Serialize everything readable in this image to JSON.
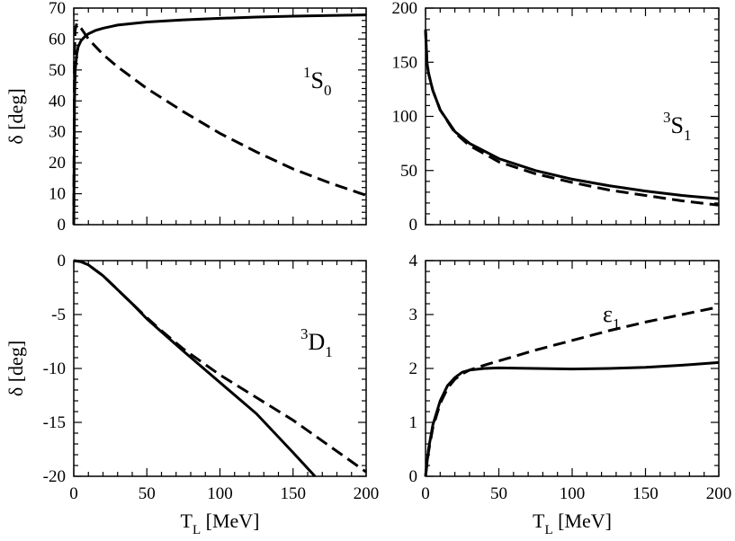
{
  "chart_data": [
    {
      "id": "1S0",
      "type": "line",
      "label": {
        "sup": "1",
        "main": "S",
        "sub": "0"
      },
      "xlabel": "",
      "ylabel": "δ [deg]",
      "xlim": [
        0,
        200
      ],
      "ylim": [
        0,
        70
      ],
      "xticks": [
        0,
        50,
        100,
        150,
        200
      ],
      "yticks": [
        0,
        10,
        20,
        30,
        40,
        50,
        60,
        70
      ],
      "xtick_labels": [
        "",
        "",
        "",
        "",
        ""
      ],
      "ytick_labels": [
        "0",
        "10",
        "20",
        "30",
        "40",
        "50",
        "60",
        "70"
      ],
      "series": [
        {
          "name": "solid",
          "style": "solid",
          "x": [
            0,
            0.5,
            1,
            2,
            3,
            5,
            8,
            10,
            15,
            20,
            30,
            50,
            75,
            100,
            125,
            150,
            175,
            200
          ],
          "y": [
            0,
            40,
            50,
            55,
            57.5,
            59.5,
            61,
            61.7,
            62.8,
            63.5,
            64.5,
            65.5,
            66.2,
            66.7,
            67.1,
            67.4,
            67.6,
            67.8
          ]
        },
        {
          "name": "dashed",
          "style": "dashed",
          "x": [
            0,
            0.5,
            1,
            2,
            3,
            5,
            10,
            20,
            30,
            50,
            75,
            100,
            125,
            150,
            175,
            200
          ],
          "y": [
            0,
            55,
            63,
            65,
            64.5,
            63.5,
            60,
            55,
            51,
            44,
            36.5,
            29.5,
            23.5,
            18,
            13.5,
            9.5
          ]
        }
      ]
    },
    {
      "id": "3S1",
      "type": "line",
      "label": {
        "sup": "3",
        "main": "S",
        "sub": "1"
      },
      "xlabel": "",
      "ylabel": "",
      "xlim": [
        0,
        200
      ],
      "ylim": [
        0,
        200
      ],
      "xticks": [
        0,
        50,
        100,
        150,
        200
      ],
      "yticks": [
        0,
        50,
        100,
        150,
        200
      ],
      "xtick_labels": [
        "",
        "",
        "",
        "",
        ""
      ],
      "ytick_labels": [
        "0",
        "50",
        "100",
        "150",
        "200"
      ],
      "series": [
        {
          "name": "solid",
          "style": "solid",
          "x": [
            0,
            1,
            2,
            5,
            10,
            20,
            30,
            50,
            75,
            100,
            125,
            150,
            175,
            200
          ],
          "y": [
            180,
            150,
            140,
            124,
            106,
            86,
            75,
            61,
            50,
            42,
            36,
            31,
            27,
            24
          ]
        },
        {
          "name": "dashed",
          "style": "dashed",
          "x": [
            0,
            1,
            2,
            5,
            10,
            20,
            30,
            50,
            75,
            100,
            125,
            150,
            175,
            200
          ],
          "y": [
            180,
            150,
            140,
            124,
            106,
            85,
            73,
            58,
            47,
            39,
            32,
            27,
            22,
            18
          ]
        }
      ]
    },
    {
      "id": "3D1",
      "type": "line",
      "label": {
        "sup": "3",
        "main": "D",
        "sub": "1"
      },
      "xlabel": "T_L [MeV]",
      "ylabel": "δ [deg]",
      "xlim": [
        0,
        200
      ],
      "ylim": [
        -20,
        0
      ],
      "xticks": [
        0,
        50,
        100,
        150,
        200
      ],
      "yticks": [
        -20,
        -15,
        -10,
        -5,
        0
      ],
      "xtick_labels": [
        "0",
        "50",
        "100",
        "150",
        "200"
      ],
      "ytick_labels": [
        "-20",
        "-15",
        "-10",
        "-5",
        "0"
      ],
      "series": [
        {
          "name": "solid",
          "style": "solid",
          "x": [
            0,
            5,
            10,
            20,
            30,
            40,
            50,
            60,
            75,
            100,
            125,
            150,
            165
          ],
          "y": [
            0,
            -0.1,
            -0.4,
            -1.4,
            -2.7,
            -4.0,
            -5.4,
            -6.6,
            -8.4,
            -11.3,
            -14.2,
            -17.8,
            -20.0
          ]
        },
        {
          "name": "dashed",
          "style": "dashed",
          "x": [
            0,
            5,
            10,
            20,
            30,
            40,
            50,
            60,
            75,
            100,
            125,
            150,
            175,
            200
          ],
          "y": [
            0,
            -0.1,
            -0.4,
            -1.4,
            -2.7,
            -4.0,
            -5.3,
            -6.5,
            -8.2,
            -10.6,
            -12.7,
            -14.8,
            -17.2,
            -19.6
          ]
        }
      ]
    },
    {
      "id": "eps1",
      "type": "line",
      "label": {
        "sup": "",
        "main": "ε",
        "sub": "1"
      },
      "xlabel": "T_L [MeV]",
      "ylabel": "",
      "xlim": [
        0,
        200
      ],
      "ylim": [
        0,
        4
      ],
      "xticks": [
        0,
        50,
        100,
        150,
        200
      ],
      "yticks": [
        0,
        1,
        2,
        3,
        4
      ],
      "xtick_labels": [
        "0",
        "50",
        "100",
        "150",
        "200"
      ],
      "ytick_labels": [
        "0",
        "1",
        "2",
        "3",
        "4"
      ],
      "series": [
        {
          "name": "solid",
          "style": "solid",
          "x": [
            0,
            2,
            5,
            10,
            15,
            20,
            25,
            30,
            40,
            50,
            75,
            100,
            125,
            150,
            175,
            200
          ],
          "y": [
            0,
            0.5,
            0.95,
            1.4,
            1.68,
            1.83,
            1.93,
            1.97,
            2.0,
            2.01,
            2.0,
            1.99,
            2.0,
            2.02,
            2.06,
            2.11
          ]
        },
        {
          "name": "dashed",
          "style": "dashed",
          "x": [
            0,
            2,
            5,
            10,
            15,
            20,
            25,
            30,
            40,
            50,
            75,
            100,
            125,
            150,
            175,
            200
          ],
          "y": [
            0,
            0.45,
            0.9,
            1.35,
            1.63,
            1.8,
            1.9,
            1.97,
            2.06,
            2.14,
            2.34,
            2.52,
            2.7,
            2.86,
            3.0,
            3.14
          ]
        }
      ]
    }
  ]
}
